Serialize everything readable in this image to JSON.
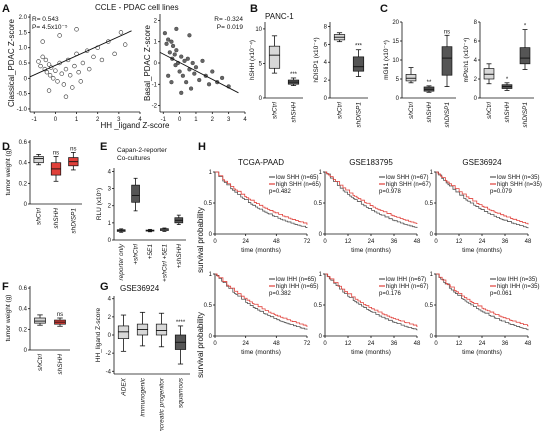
{
  "panels": {
    "A": {
      "letter": "A",
      "title": "CCLE - PDAC cell lines",
      "left": {
        "stat1": "R= 0.543",
        "stat2": "P= 4.5x10⁻⁵",
        "ylabel": "Classical_PDAC Z-score",
        "yticks": [
          "2.0",
          "1.5",
          "1.0",
          "0.5",
          "0",
          "-0.5",
          "-1.0"
        ],
        "xticks": [
          "-1",
          "0",
          "1",
          "2",
          "3",
          "4"
        ],
        "points": [
          [
            -0.8,
            0.55
          ],
          [
            -0.7,
            0.4
          ],
          [
            -0.6,
            0.7
          ],
          [
            -0.5,
            0.3
          ],
          [
            -0.45,
            0.6
          ],
          [
            -0.4,
            0.2
          ],
          [
            -0.3,
            0.45
          ],
          [
            -0.25,
            0.1
          ],
          [
            -0.2,
            0.35
          ],
          [
            -0.1,
            0.0
          ],
          [
            0.0,
            0.25
          ],
          [
            0.1,
            -0.1
          ],
          [
            0.2,
            0.5
          ],
          [
            0.3,
            0.15
          ],
          [
            0.4,
            -0.2
          ],
          [
            0.5,
            0.3
          ],
          [
            0.6,
            0.6
          ],
          [
            0.7,
            0.1
          ],
          [
            0.8,
            -0.3
          ],
          [
            0.9,
            0.4
          ],
          [
            1.0,
            0.8
          ],
          [
            1.1,
            0.2
          ],
          [
            1.2,
            -0.1
          ],
          [
            1.3,
            0.5
          ],
          [
            1.5,
            0.9
          ],
          [
            1.6,
            0.3
          ],
          [
            1.8,
            0.7
          ],
          [
            2.0,
            1.0
          ],
          [
            2.2,
            0.6
          ],
          [
            2.5,
            1.2
          ],
          [
            2.8,
            0.8
          ],
          [
            3.1,
            1.5
          ],
          [
            3.3,
            1.1
          ],
          [
            -0.6,
            1.2
          ],
          [
            0.2,
            1.4
          ],
          [
            1.0,
            1.6
          ],
          [
            0.5,
            -0.6
          ],
          [
            -0.3,
            -0.4
          ]
        ]
      },
      "right": {
        "stat1": "R= -0.324",
        "stat2": "P= 0.019",
        "ylabel": "Basal_PDAC Z-score",
        "yticks": [
          "2",
          "1",
          "0",
          "-1",
          "-2"
        ],
        "xticks": [
          "-1",
          "0",
          "1",
          "2",
          "3",
          "4"
        ],
        "points": [
          [
            -0.9,
            1.4
          ],
          [
            -0.8,
            0.9
          ],
          [
            -0.7,
            1.1
          ],
          [
            -0.6,
            0.5
          ],
          [
            -0.5,
            1.0
          ],
          [
            -0.45,
            0.2
          ],
          [
            -0.4,
            0.8
          ],
          [
            -0.3,
            0.4
          ],
          [
            -0.25,
            -0.1
          ],
          [
            -0.2,
            0.6
          ],
          [
            -0.1,
            0.0
          ],
          [
            0.0,
            -0.4
          ],
          [
            0.1,
            0.3
          ],
          [
            0.2,
            -0.6
          ],
          [
            0.3,
            0.1
          ],
          [
            0.4,
            -0.9
          ],
          [
            0.5,
            0.2
          ],
          [
            0.6,
            -0.3
          ],
          [
            0.7,
            -1.2
          ],
          [
            0.8,
            0.0
          ],
          [
            0.9,
            -0.5
          ],
          [
            1.0,
            -0.2
          ],
          [
            1.2,
            -0.8
          ],
          [
            1.4,
            0.1
          ],
          [
            1.6,
            -0.6
          ],
          [
            1.8,
            -1.0
          ],
          [
            2.0,
            -0.4
          ],
          [
            2.3,
            -0.9
          ],
          [
            2.6,
            -0.7
          ],
          [
            3.0,
            -1.1
          ],
          [
            -0.7,
            -0.6
          ],
          [
            -0.5,
            -0.9
          ],
          [
            0.1,
            -1.4
          ],
          [
            0.6,
            1.3
          ],
          [
            -0.2,
            1.6
          ]
        ]
      },
      "xlabel": "HH _ligand Z-score"
    },
    "B": {
      "letter": "B",
      "sub": "PANC-1",
      "p1": {
        "ylabel": "hSHH (x10⁻⁴)",
        "yticks": [
          "10",
          "5",
          "0"
        ],
        "cats": [
          "shCtrl",
          "shSHH"
        ],
        "sig": [
          "",
          "***"
        ],
        "boxes": [
          [
            3.6,
            4.3,
            6.2,
            7.5,
            9.0
          ],
          [
            1.8,
            2.0,
            2.3,
            2.6,
            2.9
          ]
        ]
      },
      "p2": {
        "ylabel": "hDISP1 (x10⁻⁴)",
        "yticks": [
          "8",
          "6",
          "4",
          "2",
          "0"
        ],
        "cats": [
          "shCtrl",
          "shDISP1"
        ],
        "sig": [
          "",
          "***"
        ],
        "boxes": [
          [
            6.3,
            6.5,
            6.8,
            7.1,
            7.3
          ],
          [
            2.4,
            3.0,
            3.5,
            4.6,
            5.4
          ]
        ]
      }
    },
    "C": {
      "letter": "C",
      "p1": {
        "ylabel": "mGli1 (x10⁻⁴)",
        "yticks": [
          "20",
          "15",
          "10",
          "5",
          "0"
        ],
        "cats": [
          "shCtrl",
          "shSHH",
          "shDISP1"
        ],
        "sig": [
          "",
          "**",
          "ns"
        ],
        "boxes": [
          [
            4.0,
            4.5,
            5.2,
            6.2,
            8.0
          ],
          [
            1.5,
            1.8,
            2.3,
            2.9,
            3.2
          ],
          [
            3.0,
            6.0,
            10.5,
            13.5,
            16.5
          ]
        ]
      },
      "p2": {
        "ylabel": "mPtch1 (x10⁻⁴)",
        "yticks": [
          "8",
          "6",
          "4",
          "2",
          "0"
        ],
        "cats": [
          "shCtrl",
          "shSHH",
          "shDISP1"
        ],
        "sig": [
          "",
          "*",
          "*"
        ],
        "boxes": [
          [
            1.5,
            2.0,
            2.5,
            3.1,
            3.6
          ],
          [
            0.8,
            1.0,
            1.2,
            1.4,
            1.6
          ],
          [
            3.0,
            3.6,
            4.2,
            5.3,
            7.2
          ]
        ]
      }
    },
    "D": {
      "letter": "D",
      "ylabel": "tumor weight (g)",
      "yticks": [
        "0.6",
        "0.4",
        "0.2",
        "0"
      ],
      "cats": [
        "shCtrl",
        "shSHH",
        "shDISP1"
      ],
      "sig": [
        "",
        "ns",
        "ns"
      ],
      "boxes": [
        [
          0.38,
          0.4,
          0.44,
          0.46,
          0.48
        ],
        [
          0.22,
          0.28,
          0.34,
          0.4,
          0.46
        ],
        [
          0.33,
          0.37,
          0.41,
          0.45,
          0.5
        ]
      ]
    },
    "E": {
      "letter": "E",
      "title1": "Capan-2-reporter",
      "title2": "Co-cultures",
      "ylabel": "RLU (x10⁵)",
      "yticks": [
        "4",
        "3",
        "2",
        "1",
        "0"
      ],
      "cats": [
        "reporter only",
        "+shCtrl",
        "+5E1",
        "+shCtrl +5E1",
        "+shSHH"
      ],
      "boxes": [
        [
          0.45,
          0.5,
          0.55,
          0.6,
          0.65
        ],
        [
          1.7,
          2.2,
          2.6,
          3.2,
          3.6
        ],
        [
          0.48,
          0.52,
          0.55,
          0.58,
          0.62
        ],
        [
          0.5,
          0.55,
          0.6,
          0.66,
          0.7
        ],
        [
          0.9,
          1.0,
          1.15,
          1.3,
          1.45
        ]
      ]
    },
    "F": {
      "letter": "F",
      "ylabel": "tumor weight (g)",
      "yticks": [
        "0.6",
        "0.4",
        "0.2",
        "0"
      ],
      "cats": [
        "shCtrl",
        "shSHH"
      ],
      "sig": [
        "",
        "ns"
      ],
      "boxes": [
        [
          0.24,
          0.26,
          0.28,
          0.31,
          0.34
        ],
        [
          0.23,
          0.25,
          0.27,
          0.29,
          0.31
        ]
      ]
    },
    "G": {
      "letter": "G",
      "title": "GSE36924",
      "ylabel": "HH_ligand Z-score",
      "yticks": [
        "4",
        "2",
        "0",
        "-2",
        "-4"
      ],
      "cats": [
        "ADEX",
        "immunogenic",
        "pancreatic progenitor",
        "squamous"
      ],
      "sig": [
        "",
        "",
        "",
        "****"
      ],
      "boxes": [
        [
          -1.8,
          -0.4,
          0.35,
          1.0,
          2.2
        ],
        [
          -1.2,
          0.0,
          0.6,
          1.2,
          2.5
        ],
        [
          -1.3,
          0.0,
          0.5,
          1.2,
          2.4
        ],
        [
          -3.2,
          -1.6,
          -0.8,
          0.0,
          1.0
        ]
      ]
    },
    "H": {
      "letter": "H",
      "ylabel": "survival probability",
      "xlabel": "time (months)",
      "yticks": [
        "1",
        "0.5",
        "0"
      ],
      "columns": [
        {
          "title": "TCGA-PAAD",
          "xticks": [
            "0",
            "24",
            "48",
            "72"
          ],
          "xmax": 72,
          "top": {
            "leg1": "low SHH (n=65)",
            "leg2": "high SHH (n=65)",
            "p": "p=0.482"
          },
          "bottom": {
            "leg1": "low IHH (n=65)",
            "leg2": "high IHH (n=65)",
            "p": "p=0.382"
          }
        },
        {
          "title": "GSE183795",
          "xticks": [
            "0",
            "12",
            "24",
            "36",
            "48"
          ],
          "xmax": 48,
          "top": {
            "leg1": "low SHH (n=67)",
            "leg2": "high SHH (n=67)",
            "p": "p=0.978"
          },
          "bottom": {
            "leg1": "low IHH (n=67)",
            "leg2": "high IHH (n=67)",
            "p": "p=0.176"
          }
        },
        {
          "title": "GSE36924",
          "xticks": [
            "0",
            "12",
            "24",
            "36",
            "48"
          ],
          "xmax": 48,
          "top": {
            "leg1": "low SHH (n=35)",
            "leg2": "high SHH (n=35)",
            "p": "p=0.079"
          },
          "bottom": {
            "leg1": "low IHH (n=35)",
            "leg2": "high IHH (n=35)",
            "p": "p=0.061"
          }
        }
      ]
    }
  },
  "colors": {
    "low": "#555555",
    "high": "#e0403a",
    "box_light": "#d8d8d8",
    "box_dark": "#555555",
    "box_red": "#e0403a"
  }
}
